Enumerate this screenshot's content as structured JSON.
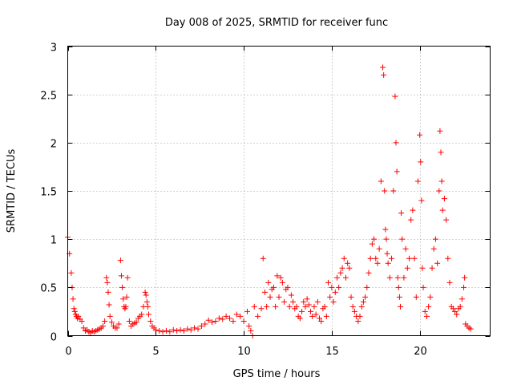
{
  "chart_data": {
    "type": "scatter",
    "title": "Day 008 of 2025, SRMTID for receiver func",
    "xlabel": "GPS time / hours",
    "ylabel": "SRMTID / TECUs",
    "xlim": [
      0,
      24
    ],
    "ylim": [
      0,
      3
    ],
    "xticks": [
      0,
      5,
      10,
      15,
      20
    ],
    "xtick_labels": [
      "0",
      "5",
      "10",
      "15",
      "20"
    ],
    "yticks": [
      0,
      0.5,
      1,
      1.5,
      2,
      2.5,
      3
    ],
    "ytick_labels": [
      "0",
      "0.5",
      "1",
      "1.5",
      "2",
      "2.5",
      "3"
    ],
    "grid": true,
    "marker": "+",
    "color": "#ff0000",
    "series": [
      {
        "name": "SRMTID",
        "x": [
          0.0,
          0.1,
          0.2,
          0.25,
          0.3,
          0.35,
          0.4,
          0.45,
          0.5,
          0.55,
          0.6,
          0.7,
          0.8,
          0.9,
          1.0,
          1.1,
          1.2,
          1.3,
          1.4,
          1.5,
          1.6,
          1.7,
          1.8,
          1.9,
          2.0,
          2.1,
          2.2,
          2.25,
          2.3,
          2.35,
          2.4,
          2.5,
          2.6,
          2.7,
          2.8,
          2.9,
          3.0,
          3.05,
          3.1,
          3.15,
          3.2,
          3.25,
          3.3,
          3.35,
          3.4,
          3.5,
          3.6,
          3.7,
          3.8,
          3.9,
          4.0,
          4.1,
          4.2,
          4.3,
          4.4,
          4.45,
          4.5,
          4.55,
          4.6,
          4.7,
          4.8,
          4.9,
          5.0,
          5.2,
          5.4,
          5.6,
          5.8,
          6.0,
          6.2,
          6.4,
          6.6,
          6.8,
          7.0,
          7.2,
          7.4,
          7.6,
          7.8,
          8.0,
          8.2,
          8.4,
          8.6,
          8.8,
          9.0,
          9.2,
          9.4,
          9.6,
          9.8,
          10.0,
          10.2,
          10.3,
          10.4,
          10.5,
          10.6,
          10.8,
          11.0,
          11.1,
          11.2,
          11.3,
          11.4,
          11.5,
          11.6,
          11.7,
          11.8,
          11.9,
          12.0,
          12.1,
          12.2,
          12.3,
          12.4,
          12.5,
          12.6,
          12.7,
          12.8,
          12.9,
          13.0,
          13.1,
          13.2,
          13.3,
          13.4,
          13.5,
          13.6,
          13.7,
          13.8,
          13.9,
          14.0,
          14.1,
          14.2,
          14.3,
          14.4,
          14.5,
          14.6,
          14.7,
          14.8,
          14.9,
          15.0,
          15.1,
          15.2,
          15.3,
          15.4,
          15.5,
          15.6,
          15.7,
          15.8,
          15.9,
          16.0,
          16.1,
          16.2,
          16.3,
          16.4,
          16.5,
          16.6,
          16.7,
          16.8,
          16.9,
          17.0,
          17.1,
          17.2,
          17.3,
          17.4,
          17.5,
          17.6,
          17.7,
          17.8,
          17.9,
          17.95,
          18.0,
          18.05,
          18.1,
          18.15,
          18.2,
          18.3,
          18.4,
          18.5,
          18.6,
          18.65,
          18.7,
          18.75,
          18.8,
          18.85,
          18.9,
          18.95,
          19.0,
          19.1,
          19.2,
          19.3,
          19.4,
          19.5,
          19.6,
          19.7,
          19.8,
          19.9,
          20.0,
          20.05,
          20.1,
          20.15,
          20.2,
          20.3,
          20.4,
          20.5,
          20.6,
          20.7,
          20.8,
          20.9,
          21.0,
          21.1,
          21.15,
          21.2,
          21.25,
          21.3,
          21.4,
          21.5,
          21.6,
          21.7,
          21.8,
          21.9,
          22.0,
          22.1,
          22.2,
          22.3,
          22.4,
          22.5,
          22.55,
          22.6,
          22.7,
          22.8,
          22.9
        ],
        "y": [
          1.02,
          0.85,
          0.65,
          0.5,
          0.38,
          0.28,
          0.25,
          0.22,
          0.2,
          0.18,
          0.2,
          0.17,
          0.15,
          0.08,
          0.05,
          0.06,
          0.04,
          0.03,
          0.05,
          0.04,
          0.05,
          0.06,
          0.07,
          0.08,
          0.1,
          0.15,
          0.6,
          0.55,
          0.45,
          0.32,
          0.2,
          0.14,
          0.1,
          0.08,
          0.08,
          0.12,
          0.78,
          0.62,
          0.5,
          0.38,
          0.3,
          0.28,
          0.3,
          0.4,
          0.6,
          0.15,
          0.1,
          0.12,
          0.13,
          0.14,
          0.18,
          0.2,
          0.22,
          0.3,
          0.45,
          0.42,
          0.35,
          0.3,
          0.22,
          0.15,
          0.1,
          0.08,
          0.06,
          0.05,
          0.04,
          0.05,
          0.04,
          0.06,
          0.05,
          0.06,
          0.05,
          0.07,
          0.06,
          0.08,
          0.07,
          0.1,
          0.12,
          0.16,
          0.14,
          0.15,
          0.18,
          0.17,
          0.2,
          0.18,
          0.15,
          0.22,
          0.2,
          0.15,
          0.25,
          0.1,
          0.05,
          0.0,
          0.3,
          0.2,
          0.28,
          0.8,
          0.45,
          0.3,
          0.55,
          0.4,
          0.48,
          0.5,
          0.3,
          0.62,
          0.4,
          0.6,
          0.55,
          0.35,
          0.48,
          0.5,
          0.3,
          0.42,
          0.35,
          0.28,
          0.3,
          0.2,
          0.18,
          0.25,
          0.35,
          0.3,
          0.38,
          0.32,
          0.25,
          0.2,
          0.3,
          0.22,
          0.35,
          0.18,
          0.15,
          0.28,
          0.3,
          0.2,
          0.55,
          0.4,
          0.5,
          0.35,
          0.45,
          0.6,
          0.5,
          0.65,
          0.7,
          0.8,
          0.6,
          0.75,
          0.7,
          0.4,
          0.3,
          0.25,
          0.2,
          0.15,
          0.2,
          0.3,
          0.35,
          0.4,
          0.5,
          0.65,
          0.8,
          0.95,
          1.0,
          0.8,
          0.75,
          0.9,
          1.6,
          2.78,
          2.7,
          1.5,
          1.1,
          1.0,
          0.85,
          0.75,
          0.6,
          0.8,
          1.5,
          2.48,
          2.0,
          1.7,
          0.6,
          0.5,
          0.4,
          0.3,
          1.27,
          1.0,
          0.6,
          0.9,
          0.7,
          0.8,
          1.2,
          1.3,
          0.8,
          0.4,
          1.6,
          2.08,
          1.8,
          1.4,
          0.7,
          0.5,
          0.25,
          0.2,
          0.3,
          0.4,
          0.7,
          0.9,
          1.0,
          0.75,
          1.5,
          2.12,
          1.9,
          1.6,
          1.3,
          1.42,
          1.2,
          0.8,
          0.55,
          0.3,
          0.28,
          0.25,
          0.22,
          0.28,
          0.3,
          0.38,
          0.5,
          0.6,
          0.12,
          0.1,
          0.08,
          0.07
        ]
      }
    ]
  }
}
